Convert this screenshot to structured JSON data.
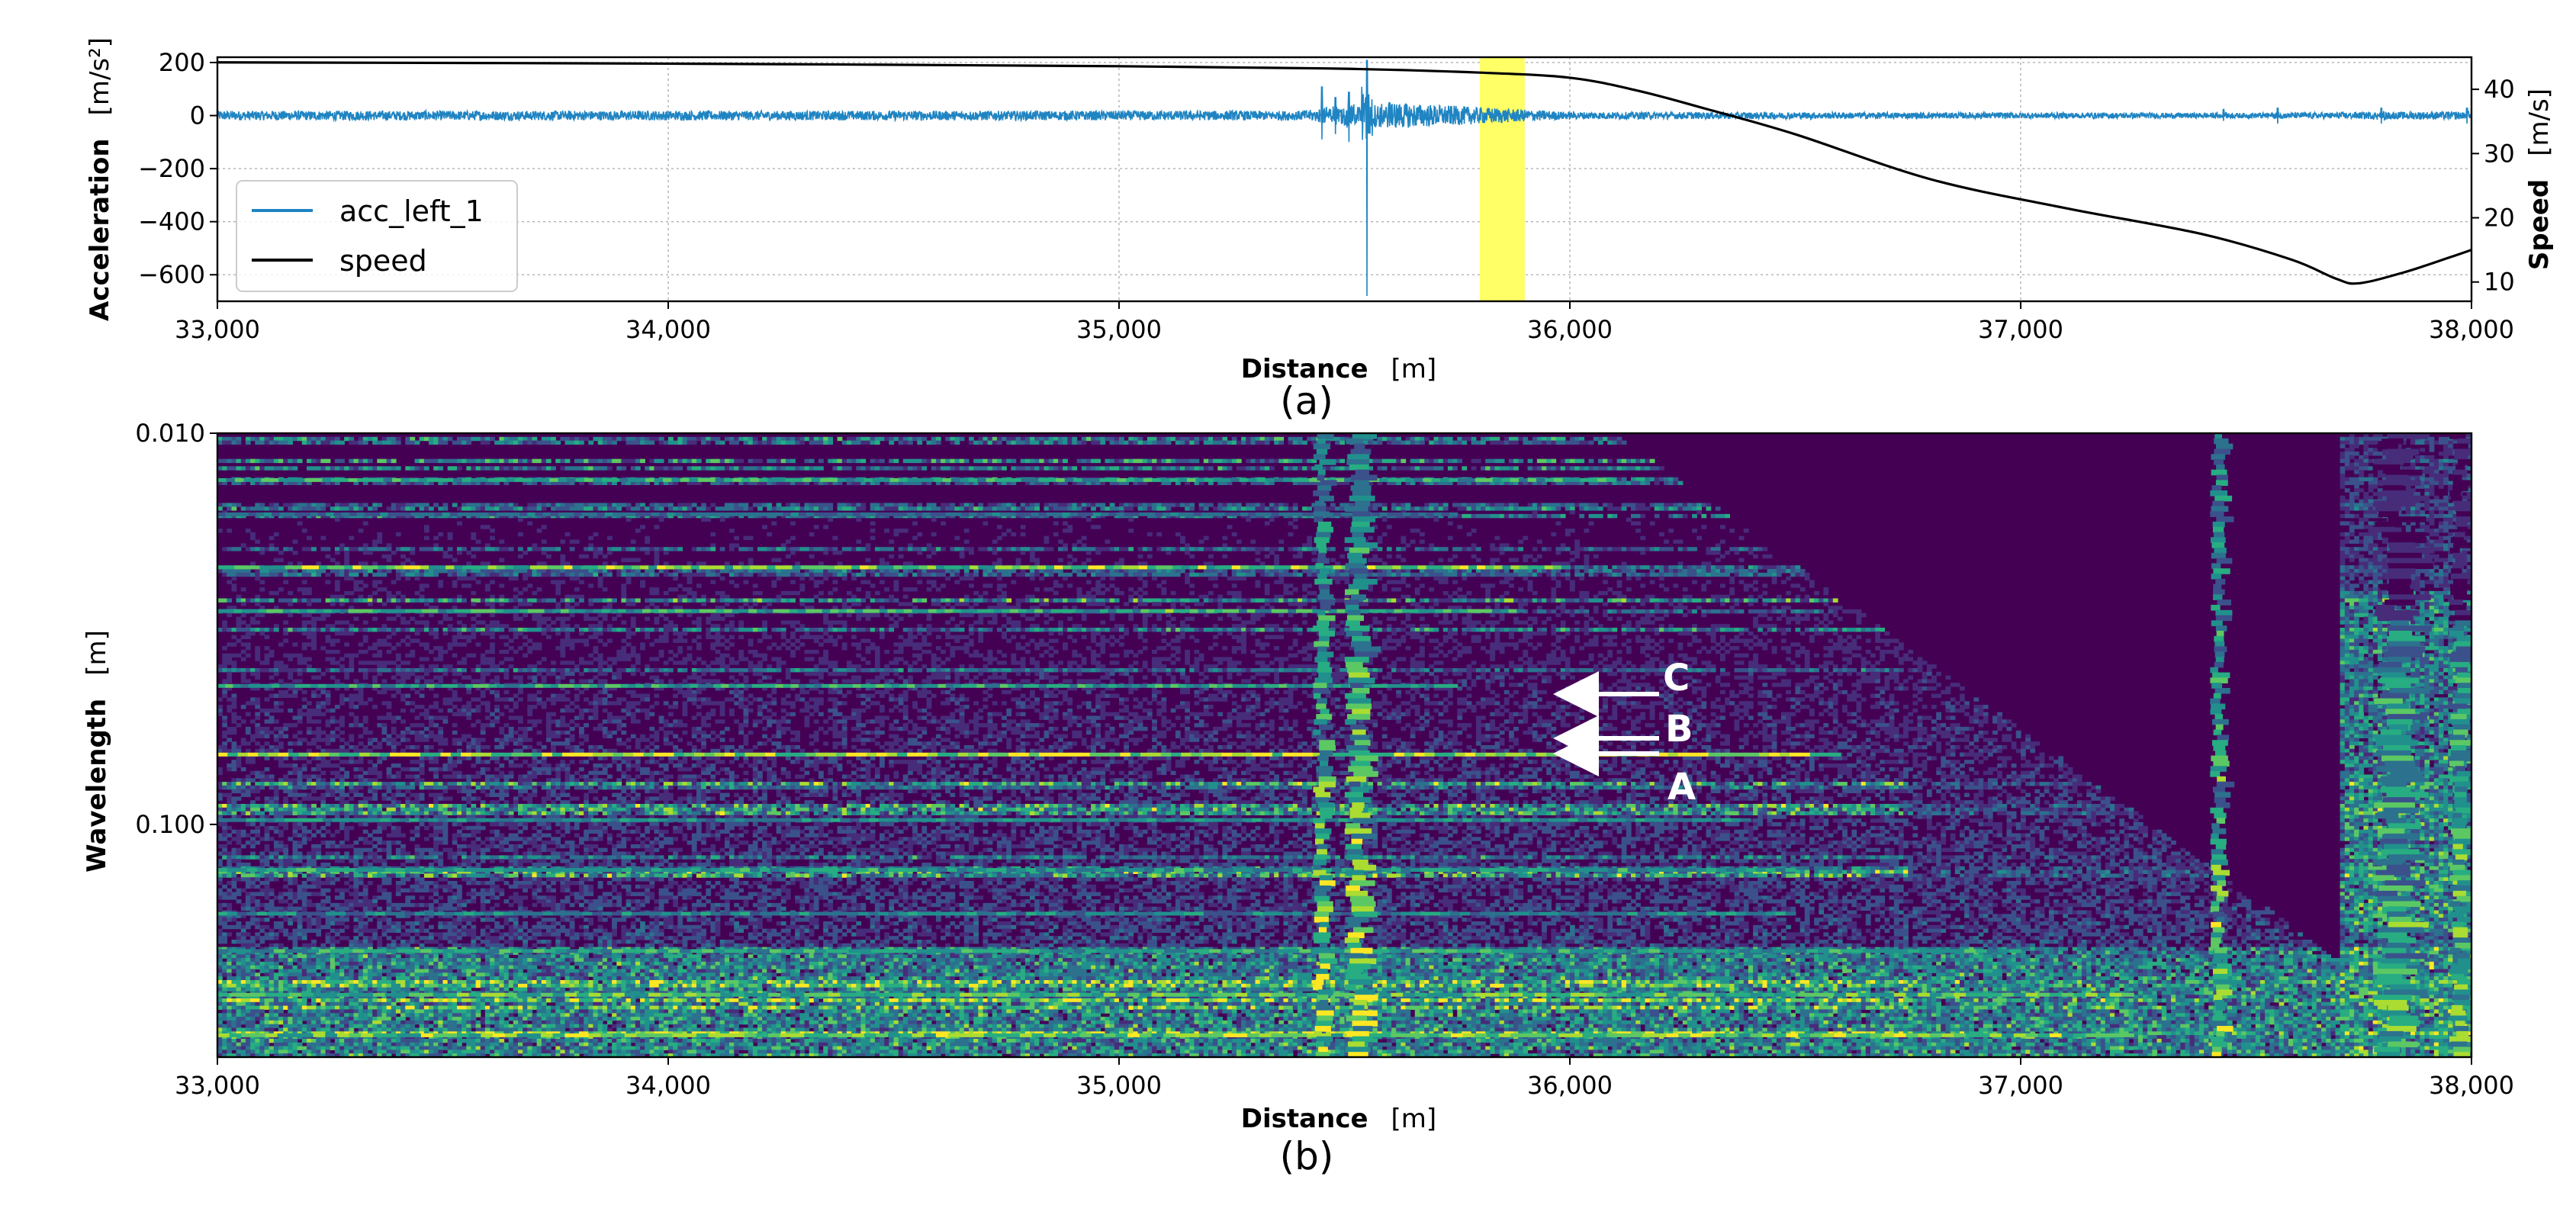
{
  "chart_data": [
    {
      "type": "line",
      "panel_label": "(a)",
      "xlabel": "Distance",
      "xunit": "[m]",
      "ylabel": "Acceleration",
      "yunit": "[m/s²]",
      "y2label": "Speed",
      "y2unit": "[m/s]",
      "xlim": [
        33000,
        38000
      ],
      "ylim": [
        -700,
        220
      ],
      "y2lim": [
        7,
        45
      ],
      "xticks": [
        33000,
        34000,
        35000,
        36000,
        37000,
        38000
      ],
      "xtick_labels": [
        "33,000",
        "34,000",
        "35,000",
        "36,000",
        "37,000",
        "38,000"
      ],
      "yticks": [
        200,
        0,
        -200,
        -400,
        -600
      ],
      "ytick_labels": [
        "200",
        "0",
        "−200",
        "−400",
        "−600"
      ],
      "y2ticks": [
        40,
        30,
        20,
        10
      ],
      "y2tick_labels": [
        "40",
        "30",
        "20",
        "10"
      ],
      "grid": true,
      "legend_position": "lower-left",
      "highlight_band": {
        "x": [
          35800,
          35900
        ],
        "color": "#ffff66"
      },
      "series": [
        {
          "name": "acc_left_1",
          "color": "#1f84c2",
          "axis": "left",
          "baseline": 0,
          "noise_amplitude": [
            [
              33000,
              18
            ],
            [
              35400,
              18
            ],
            [
              35600,
              50
            ],
            [
              36000,
              14
            ],
            [
              37500,
              10
            ],
            [
              38000,
              16
            ]
          ],
          "spikes": [
            [
              35450,
              -90,
              110
            ],
            [
              35480,
              -70,
              70
            ],
            [
              35510,
              -100,
              90
            ],
            [
              35550,
              -680,
              210
            ],
            [
              35600,
              -40,
              50
            ],
            [
              37450,
              -20,
              25
            ],
            [
              37570,
              -30,
              30
            ],
            [
              37800,
              -30,
              30
            ],
            [
              37990,
              -30,
              30
            ]
          ]
        },
        {
          "name": "speed",
          "color": "#000000",
          "axis": "right",
          "x": [
            33000,
            34000,
            35000,
            35500,
            35800,
            36000,
            36150,
            36300,
            36500,
            36800,
            37100,
            37400,
            37600,
            37700,
            37750,
            37850,
            37950,
            38000
          ],
          "y": [
            44.2,
            44.0,
            43.6,
            43.2,
            42.6,
            41.8,
            39.8,
            37.0,
            33.0,
            26.0,
            21.5,
            17.5,
            13.5,
            10.5,
            9.8,
            11.5,
            13.8,
            15.0
          ]
        }
      ]
    },
    {
      "type": "heatmap",
      "panel_label": "(b)",
      "xlabel": "Distance",
      "xunit": "[m]",
      "ylabel": "Wavelength",
      "yunit": "[m]",
      "xlim": [
        33000,
        38000
      ],
      "y_scale": "reciprocal",
      "yticks": [
        0.01,
        0.1
      ],
      "ytick_labels": [
        "0.010",
        "0.100"
      ],
      "xticks": [
        33000,
        34000,
        35000,
        36000,
        37000,
        38000
      ],
      "xtick_labels": [
        "33,000",
        "34,000",
        "35,000",
        "36,000",
        "37,000",
        "38,000"
      ],
      "colormap": "viridis",
      "annotations": [
        {
          "label": "C",
          "arrow_to_x": 35850
        },
        {
          "label": "B",
          "arrow_to_x": 35850
        },
        {
          "label": "A",
          "arrow_to_x": 35850
        }
      ]
    }
  ]
}
